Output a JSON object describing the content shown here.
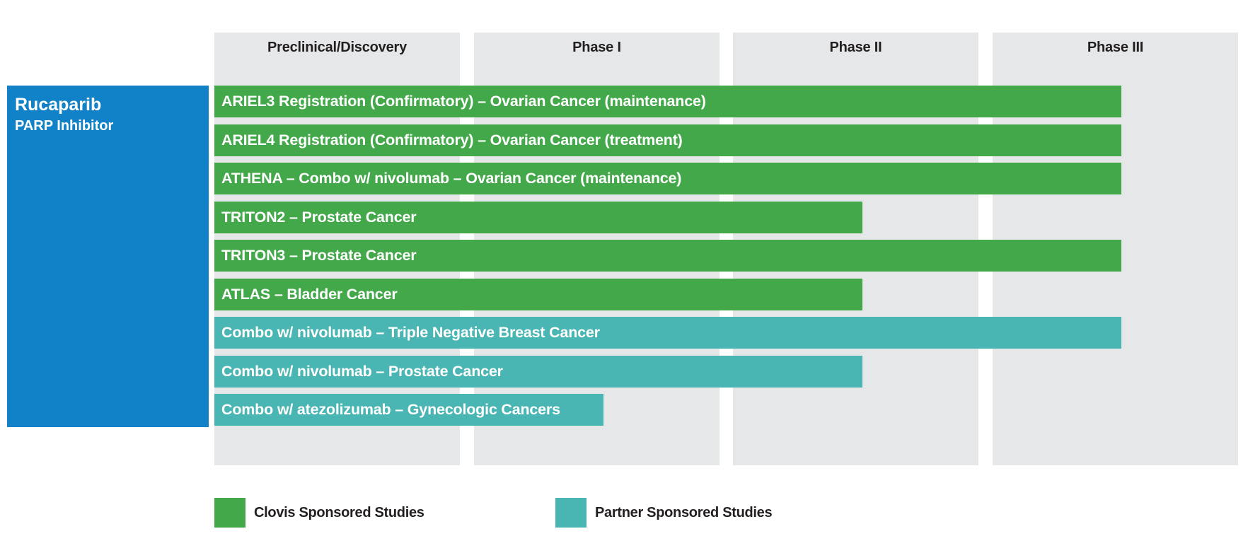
{
  "chart_data": {
    "type": "bar",
    "orientation": "horizontal",
    "title": "",
    "drug": {
      "name": "Rucaparib",
      "class": "PARP Inhibitor"
    },
    "phases": [
      "Preclinical/Discovery",
      "Phase I",
      "Phase II",
      "Phase III"
    ],
    "x_unit": "development phase reached (0 = start of Preclinical/Discovery, 4 = end of Phase III)",
    "xlim": [
      0,
      4
    ],
    "categories": [
      "ARIEL3 Registration (Confirmatory) – Ovarian Cancer (maintenance)",
      "ARIEL4 Registration (Confirmatory) – Ovarian Cancer (treatment)",
      "ATHENA – Combo w/ nivolumab – Ovarian Cancer (maintenance)",
      "TRITON2 – Prostate Cancer",
      "TRITON3 – Prostate Cancer",
      "ATLAS – Bladder Cancer",
      "Combo w/ nivolumab – Triple Negative Breast Cancer",
      "Combo w/ nivolumab – Prostate Cancer",
      "Combo w/ atezolizumab – Gynecologic Cancers"
    ],
    "values": [
      3.5,
      3.5,
      3.5,
      2.5,
      3.5,
      2.5,
      3.5,
      2.5,
      1.5
    ],
    "sponsor": [
      "Clovis",
      "Clovis",
      "Clovis",
      "Clovis",
      "Clovis",
      "Clovis",
      "Partner",
      "Partner",
      "Partner"
    ],
    "legend": [
      {
        "key": "Clovis",
        "label": "Clovis Sponsored Studies",
        "color": "#43a84a"
      },
      {
        "key": "Partner",
        "label": "Partner Sponsored Studies",
        "color": "#49b6b4"
      }
    ],
    "legend_position": "bottom-left",
    "colors": {
      "phase_column": "#e6e7e8",
      "drug_box": "#1282c8"
    },
    "grid": false
  }
}
